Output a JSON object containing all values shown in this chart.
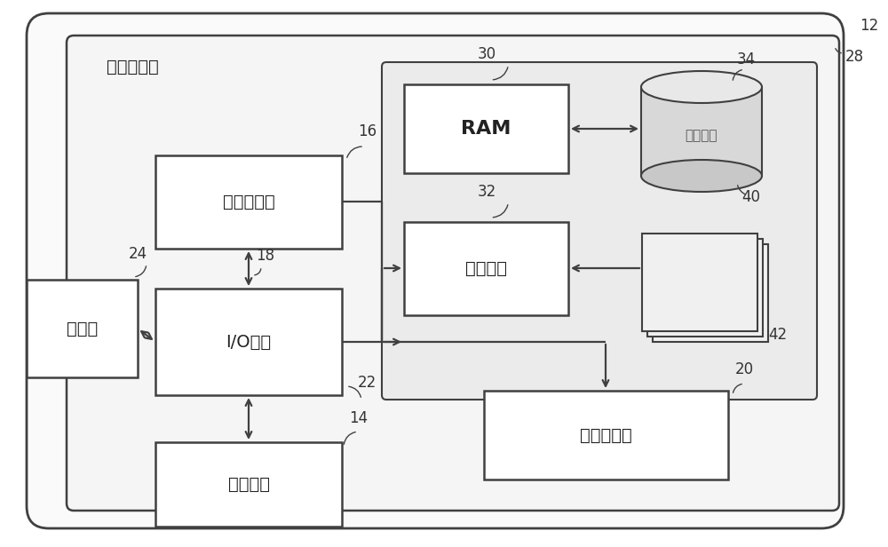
{
  "fig_width": 10.0,
  "fig_height": 6.16,
  "bg_color": "#ffffff",
  "label_12": "12",
  "label_28": "28",
  "label_16": "16",
  "label_18": "18",
  "label_22": "22",
  "label_30": "30",
  "label_32": "32",
  "label_34": "34",
  "label_40": "40",
  "label_42": "42",
  "label_20": "20",
  "label_24": "24",
  "label_14": "14",
  "text_jisuan": "计算机设备",
  "text_cpu": "处理器单元",
  "text_io": "I/O接口",
  "text_ram": "RAM",
  "text_cache": "高速缓存",
  "text_network": "网络适配器",
  "text_display": "显示器",
  "text_external": "外部设备",
  "text_storage": "存储系统",
  "lc": "#404040",
  "box_fill": "#ffffff",
  "box_edge": "#404040",
  "outer_fill": "#ffffff",
  "inner_fill": "#f8f8f8",
  "mem_fill": "#eeeeee",
  "cyl_body": "#d8d8d8",
  "cyl_top": "#e8e8e8",
  "disk_fill": "#f0f0f0"
}
